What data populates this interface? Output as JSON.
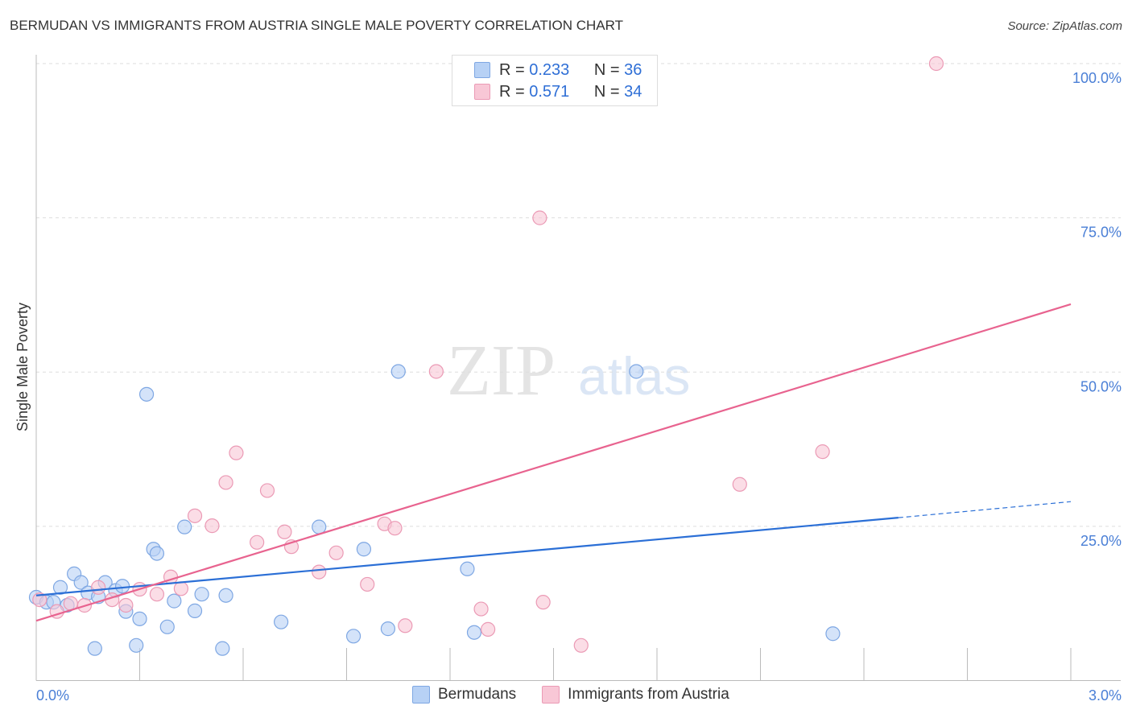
{
  "title": "BERMUDAN VS IMMIGRANTS FROM AUSTRIA SINGLE MALE POVERTY CORRELATION CHART",
  "source": "Source: ZipAtlas.com",
  "watermark": "ZIPatlas",
  "legend": {
    "r_label": "R =",
    "n_label": "N =",
    "rows": [
      {
        "r": "0.233",
        "n": "36"
      },
      {
        "r": "0.571",
        "n": "34"
      }
    ]
  },
  "chart_data": {
    "type": "scatter",
    "title": "BERMUDAN VS IMMIGRANTS FROM AUSTRIA SINGLE MALE POVERTY CORRELATION CHART",
    "xlabel": "",
    "ylabel": "Single Male Poverty",
    "xlim": [
      0,
      3
    ],
    "ylim": [
      0,
      100
    ],
    "x_tick_labels": [
      "0.0%",
      "3.0%"
    ],
    "y_tick_labels": [
      "25.0%",
      "50.0%",
      "75.0%",
      "100.0%"
    ],
    "y_ticks": [
      25,
      50,
      75,
      100
    ],
    "colors": {
      "Bermudans": "#5b8fd9",
      "Immigrants from Austria": "#e88aa8"
    },
    "series": [
      {
        "name": "Bermudans",
        "fill": "#b7d1f5",
        "stroke": "#7ea7e3",
        "line": "#2b6fd6",
        "trend": [
          [
            0,
            13.8
          ],
          [
            2.5,
            26.4
          ]
        ],
        "trend_dashed": [
          [
            2.5,
            26.4
          ],
          [
            3,
            29.0
          ]
        ],
        "points": [
          [
            0,
            13.5
          ],
          [
            0.03,
            12.7
          ],
          [
            0.05,
            12.7
          ],
          [
            0.07,
            15.1
          ],
          [
            0.09,
            12.2
          ],
          [
            0.11,
            17.3
          ],
          [
            0.13,
            15.9
          ],
          [
            0.15,
            14.2
          ],
          [
            0.17,
            5.2
          ],
          [
            0.18,
            13.6
          ],
          [
            0.2,
            15.9
          ],
          [
            0.23,
            14.6
          ],
          [
            0.25,
            15.3
          ],
          [
            0.26,
            11.2
          ],
          [
            0.29,
            5.7
          ],
          [
            0.3,
            10.0
          ],
          [
            0.32,
            46.4
          ],
          [
            0.34,
            21.3
          ],
          [
            0.35,
            20.6
          ],
          [
            0.38,
            8.7
          ],
          [
            0.4,
            12.9
          ],
          [
            0.43,
            24.9
          ],
          [
            0.46,
            11.3
          ],
          [
            0.48,
            14.0
          ],
          [
            0.54,
            5.2
          ],
          [
            0.55,
            13.8
          ],
          [
            0.71,
            9.5
          ],
          [
            0.82,
            24.9
          ],
          [
            0.92,
            7.2
          ],
          [
            0.95,
            21.3
          ],
          [
            1.02,
            8.4
          ],
          [
            1.05,
            50.1
          ],
          [
            1.25,
            18.1
          ],
          [
            1.27,
            7.8
          ],
          [
            1.74,
            50.1
          ],
          [
            2.31,
            7.6
          ]
        ]
      },
      {
        "name": "Immigrants from Austria",
        "fill": "#f8c7d6",
        "stroke": "#eb9ab5",
        "line": "#e8638f",
        "trend": [
          [
            0,
            9.7
          ],
          [
            3,
            61.0
          ]
        ],
        "points": [
          [
            0.01,
            13.1
          ],
          [
            0.06,
            11.2
          ],
          [
            0.1,
            12.5
          ],
          [
            0.14,
            12.2
          ],
          [
            0.18,
            15.1
          ],
          [
            0.22,
            13.1
          ],
          [
            0.26,
            12.2
          ],
          [
            0.3,
            14.8
          ],
          [
            0.35,
            14.0
          ],
          [
            0.39,
            16.8
          ],
          [
            0.42,
            14.9
          ],
          [
            0.46,
            26.7
          ],
          [
            0.51,
            25.1
          ],
          [
            0.55,
            32.1
          ],
          [
            0.58,
            36.9
          ],
          [
            0.64,
            22.4
          ],
          [
            0.67,
            30.8
          ],
          [
            0.72,
            24.1
          ],
          [
            0.74,
            21.7
          ],
          [
            0.82,
            17.6
          ],
          [
            0.87,
            20.7
          ],
          [
            0.96,
            15.6
          ],
          [
            1.01,
            25.4
          ],
          [
            1.04,
            24.7
          ],
          [
            1.07,
            8.9
          ],
          [
            1.16,
            50.1
          ],
          [
            1.29,
            11.6
          ],
          [
            1.31,
            8.3
          ],
          [
            1.46,
            75.0
          ],
          [
            1.47,
            12.7
          ],
          [
            1.58,
            5.7
          ],
          [
            2.04,
            31.8
          ],
          [
            2.28,
            37.1
          ],
          [
            2.61,
            100.0
          ]
        ]
      }
    ]
  }
}
